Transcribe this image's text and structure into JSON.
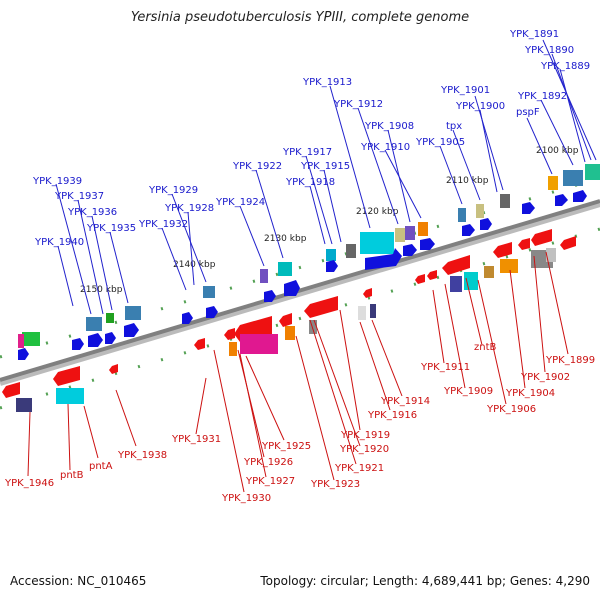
{
  "title": "Yersinia pseudotuberculosis YPIII, complete genome",
  "footer": {
    "accession": "Accession: NC_010465",
    "info": "Topology: circular; Length: 4,689,441 bp; Genes: 4,290"
  },
  "ticks": [
    "2100 kbp",
    "2110 kbp",
    "2120 kbp",
    "2130 kbp",
    "2140 kbp",
    "2150 kbp"
  ],
  "genes_top": [
    "YPK_1891",
    "YPK_1890",
    "YPK_1889",
    "YPK_1892",
    "pspF",
    "YPK_1901",
    "YPK_1900",
    "tpx",
    "YPK_1905",
    "YPK_1913",
    "YPK_1912",
    "YPK_1908",
    "YPK_1910",
    "YPK_1917",
    "YPK_1915",
    "YPK_1918",
    "YPK_1922",
    "YPK_1924",
    "YPK_1929",
    "YPK_1928",
    "YPK_1932",
    "YPK_1939",
    "YPK_1937",
    "YPK_1936",
    "YPK_1935",
    "YPK_1940"
  ],
  "genes_bottom": [
    "YPK_1899",
    "YPK_1902",
    "YPK_1904",
    "YPK_1906",
    "zntB",
    "YPK_1909",
    "YPK_1911",
    "YPK_1914",
    "YPK_1916",
    "YPK_1919",
    "YPK_1920",
    "YPK_1921",
    "YPK_1923",
    "YPK_1925",
    "YPK_1926",
    "YPK_1927",
    "YPK_1930",
    "YPK_1931",
    "YPK_1938",
    "pntA",
    "pntB",
    "YPK_1946"
  ],
  "colors": {
    "forward_label": "#1a1acc",
    "reverse_label": "#cc1111",
    "backbone": "#808080"
  }
}
